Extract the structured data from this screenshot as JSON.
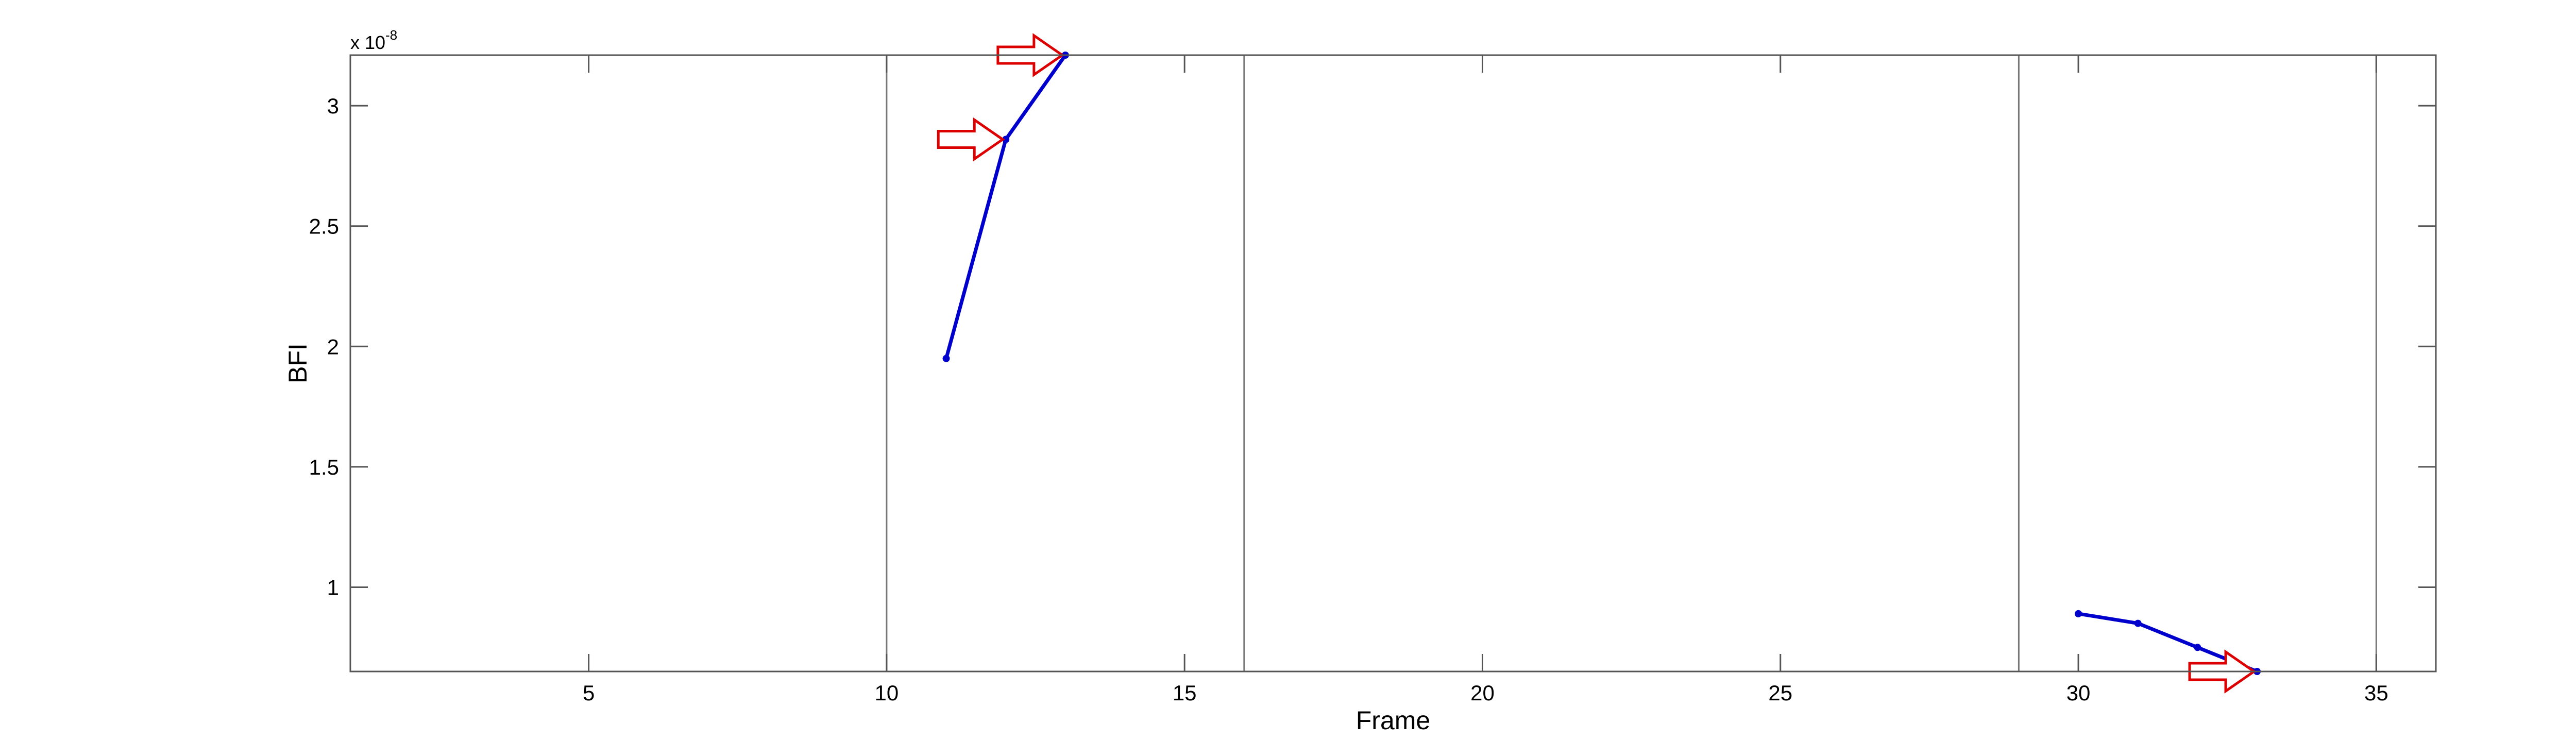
{
  "chart_data": {
    "type": "line",
    "xlabel": "Frame",
    "ylabel": "BFI",
    "y_exponent_label": "x 10",
    "y_exponent": "-8",
    "xlim": [
      1,
      36
    ],
    "ylim": [
      0.65,
      3.21
    ],
    "xticks": [
      5,
      10,
      15,
      20,
      25,
      30,
      35
    ],
    "yticks": [
      1,
      1.5,
      2,
      2.5,
      3
    ],
    "vertical_lines": [
      10,
      16,
      29,
      35
    ],
    "grid": false,
    "series": [
      {
        "x": [
          11,
          12,
          13
        ],
        "y": [
          1.95,
          2.86,
          3.21
        ]
      },
      {
        "x": [
          30,
          31,
          32,
          33
        ],
        "y": [
          0.89,
          0.85,
          0.75,
          0.65
        ]
      }
    ],
    "annotations": [
      {
        "type": "arrow",
        "target_x": 13,
        "target_y": 3.21,
        "direction": "right"
      },
      {
        "type": "arrow",
        "target_x": 12,
        "target_y": 2.86,
        "direction": "right"
      },
      {
        "type": "arrow",
        "target_x": 33,
        "target_y": 0.65,
        "direction": "right"
      }
    ],
    "colors": {
      "line": "#0000cc",
      "arrow": "#dd0000",
      "axis": "#555555",
      "vline": "#777777"
    }
  }
}
